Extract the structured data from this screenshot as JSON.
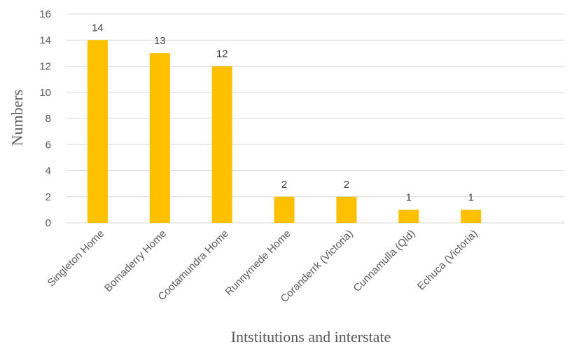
{
  "chart_data": {
    "type": "bar",
    "title": "",
    "xlabel": "Intstitutions and interstate",
    "ylabel": "Numbers",
    "ylim": [
      0,
      16
    ],
    "yticks": [
      0,
      2,
      4,
      6,
      8,
      10,
      12,
      14,
      16
    ],
    "grid": true,
    "legend": "none",
    "bar_color": "#FFC000",
    "categories": [
      "Singleton Home",
      "Bomaderry Home",
      "Cootamundra Home",
      "Runnymede Home",
      "Coranderrk (Victoria)",
      "Cunnamulla (Qld)",
      "Echuca (Victoria)",
      ""
    ],
    "values": [
      14,
      13,
      12,
      2,
      2,
      1,
      1,
      null
    ]
  }
}
